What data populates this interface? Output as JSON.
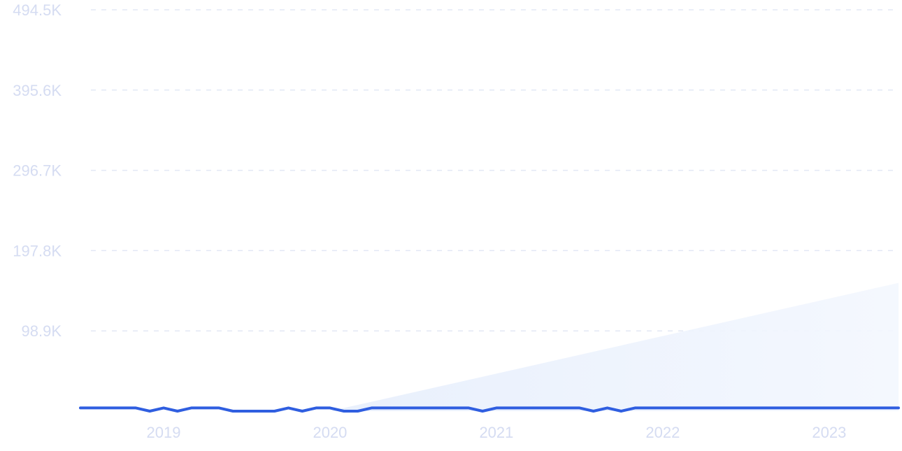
{
  "chart_data": {
    "type": "line",
    "title": "",
    "xlabel": "",
    "ylabel": "",
    "x_range": [
      "2018-07",
      "2023-06"
    ],
    "ylim": [
      0,
      494500
    ],
    "y_ticks": [
      {
        "value": 494500,
        "label": "494.5K"
      },
      {
        "value": 395600,
        "label": "395.6K"
      },
      {
        "value": 296700,
        "label": "296.7K"
      },
      {
        "value": 197800,
        "label": "197.8K"
      },
      {
        "value": 98900,
        "label": "98.9K"
      }
    ],
    "x_ticks": [
      {
        "value": "2019-01",
        "label": "2019"
      },
      {
        "value": "2020-01",
        "label": "2020"
      },
      {
        "value": "2021-01",
        "label": "2021"
      },
      {
        "value": "2022-01",
        "label": "2022"
      },
      {
        "value": "2023-01",
        "label": "2023"
      }
    ],
    "grid": "horizontal dashed",
    "legend": "none",
    "colors": {
      "line": "#2f5ee0",
      "grid": "#e3e8f5",
      "tick_text": "#d5dcf2",
      "trend_fill": "#eef3fd"
    },
    "trend_overlay": {
      "start": "2020-01",
      "end": "2023-06",
      "start_value": 0,
      "end_value": 158000
    },
    "series": [
      {
        "x": [
          "2018-07",
          "2018-08",
          "2018-09",
          "2018-10",
          "2018-11",
          "2018-12",
          "2019-01",
          "2019-02",
          "2019-03",
          "2019-04",
          "2019-05",
          "2019-06",
          "2019-07",
          "2019-08",
          "2019-09",
          "2019-10",
          "2019-11",
          "2019-12",
          "2020-01",
          "2020-02",
          "2020-03",
          "2020-04",
          "2020-05",
          "2020-06",
          "2020-07",
          "2020-08",
          "2020-09",
          "2020-10",
          "2020-11",
          "2020-12",
          "2021-01",
          "2021-02",
          "2021-03",
          "2021-04",
          "2021-05",
          "2021-06",
          "2021-07",
          "2021-08",
          "2021-09",
          "2021-10",
          "2021-11",
          "2021-12",
          "2022-01",
          "2022-02",
          "2022-03",
          "2022-04",
          "2022-05",
          "2022-06",
          "2022-07",
          "2022-08",
          "2022-09",
          "2022-10",
          "2022-11",
          "2022-12",
          "2023-01",
          "2023-02",
          "2023-03",
          "2023-04",
          "2023-05",
          "2023-06"
        ],
        "y": [
          4000,
          4000,
          4000,
          4000,
          4000,
          0,
          4000,
          0,
          4000,
          4000,
          4000,
          0,
          0,
          0,
          0,
          4000,
          0,
          4000,
          4000,
          0,
          0,
          4000,
          4000,
          4000,
          4000,
          4000,
          4000,
          4000,
          4000,
          0,
          4000,
          4000,
          4000,
          4000,
          4000,
          4000,
          4000,
          0,
          4000,
          0,
          4000,
          4000,
          4000,
          4000,
          4000,
          4000,
          4000,
          4000,
          4000,
          4000,
          4000,
          4000,
          4000,
          4000,
          4000,
          4000,
          4000,
          4000,
          4000,
          4000
        ]
      }
    ]
  }
}
